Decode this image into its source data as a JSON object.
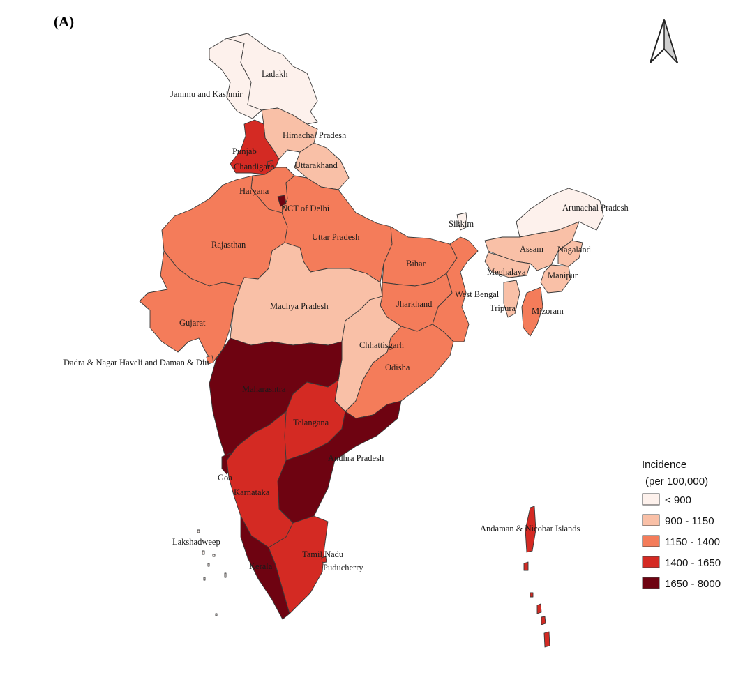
{
  "panel_label": "(A)",
  "legend": {
    "title_line1": "Incidence",
    "title_line2": "(per 100,000)",
    "classes": [
      {
        "label": "< 900",
        "color": "#fdf1ec"
      },
      {
        "label": "900 - 1150",
        "color": "#f9c0a7"
      },
      {
        "label": "1150 - 1400",
        "color": "#f47c5a"
      },
      {
        "label": "1400 - 1650",
        "color": "#d42a23"
      },
      {
        "label": "1650 - 8000",
        "color": "#6e0311"
      }
    ]
  },
  "north_arrow": "north-arrow-icon",
  "regions": [
    {
      "name": "Ladakh",
      "class": 0
    },
    {
      "name": "Jammu and Kashmir",
      "class": 0
    },
    {
      "name": "Himachal Pradesh",
      "class": 1
    },
    {
      "name": "Punjab",
      "class": 3
    },
    {
      "name": "Chandigarh",
      "class": 3
    },
    {
      "name": "Uttarakhand",
      "class": 1
    },
    {
      "name": "Haryana",
      "class": 2
    },
    {
      "name": "NCT of Delhi",
      "class": 4
    },
    {
      "name": "Rajasthan",
      "class": 2
    },
    {
      "name": "Uttar Pradesh",
      "class": 2
    },
    {
      "name": "Sikkim",
      "class": 0
    },
    {
      "name": "Arunachal Pradesh",
      "class": 0
    },
    {
      "name": "Assam",
      "class": 1
    },
    {
      "name": "Nagaland",
      "class": 1
    },
    {
      "name": "Meghalaya",
      "class": 1
    },
    {
      "name": "Manipur",
      "class": 1
    },
    {
      "name": "Bihar",
      "class": 2
    },
    {
      "name": "West Bengal",
      "class": 2
    },
    {
      "name": "Tripura",
      "class": 1
    },
    {
      "name": "Mizoram",
      "class": 2
    },
    {
      "name": "Jharkhand",
      "class": 2
    },
    {
      "name": "Madhya Pradesh",
      "class": 1
    },
    {
      "name": "Gujarat",
      "class": 2
    },
    {
      "name": "Chhattisgarh",
      "class": 1
    },
    {
      "name": "Odisha",
      "class": 2
    },
    {
      "name": "Dadra & Nagar Haveli and Daman & Diu",
      "class": 2
    },
    {
      "name": "Maharashtra",
      "class": 4
    },
    {
      "name": "Telangana",
      "class": 3
    },
    {
      "name": "Andhra Pradesh",
      "class": 4
    },
    {
      "name": "Goa",
      "class": 4
    },
    {
      "name": "Karnataka",
      "class": 3
    },
    {
      "name": "Lakshadweep",
      "class": 0
    },
    {
      "name": "Andaman & Nicobar Islands",
      "class": 3
    },
    {
      "name": "Tamil Nadu",
      "class": 3
    },
    {
      "name": "Puducherry",
      "class": 3
    },
    {
      "name": "Kerala",
      "class": 4
    }
  ]
}
